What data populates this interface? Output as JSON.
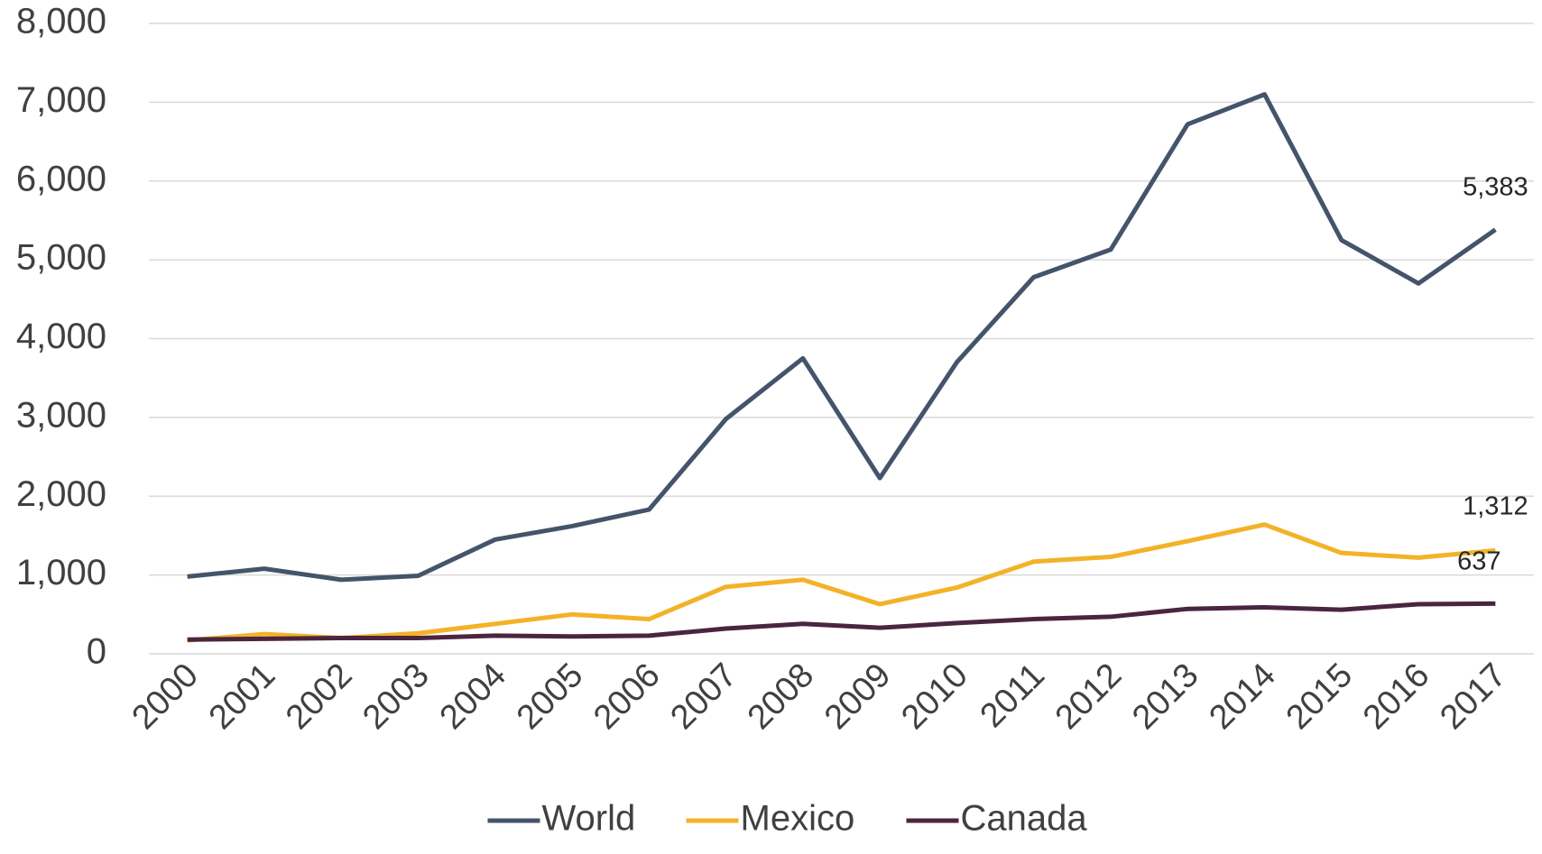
{
  "chart_data": {
    "type": "line",
    "categories": [
      "2000",
      "2001",
      "2002",
      "2003",
      "2004",
      "2005",
      "2006",
      "2007",
      "2008",
      "2009",
      "2010",
      "2011",
      "2012",
      "2013",
      "2014",
      "2015",
      "2016",
      "2017"
    ],
    "series": [
      {
        "name": "World",
        "color": "#44546a",
        "values": [
          980,
          1080,
          940,
          990,
          1450,
          1620,
          1830,
          2980,
          3750,
          2230,
          3700,
          4780,
          5130,
          6720,
          7100,
          5250,
          4700,
          5383
        ],
        "value_labels": [
          null,
          null,
          null,
          null,
          null,
          null,
          null,
          null,
          null,
          null,
          null,
          null,
          null,
          null,
          null,
          null,
          null,
          "5,383"
        ]
      },
      {
        "name": "Mexico",
        "color": "#f3b228",
        "values": [
          170,
          250,
          200,
          260,
          380,
          500,
          440,
          850,
          940,
          630,
          840,
          1170,
          1230,
          1430,
          1640,
          1280,
          1220,
          1312
        ],
        "value_labels": [
          null,
          null,
          null,
          null,
          null,
          null,
          null,
          null,
          null,
          null,
          null,
          null,
          null,
          null,
          null,
          null,
          null,
          "1,312"
        ]
      },
      {
        "name": "Canada",
        "color": "#4b2540",
        "values": [
          180,
          190,
          200,
          200,
          230,
          220,
          230,
          320,
          380,
          330,
          390,
          440,
          470,
          570,
          590,
          560,
          630,
          637
        ]
      }
    ],
    "ylim": [
      0,
      8000
    ],
    "yticks": [
      0,
      {
        "value": 1000,
        "label": "1,000"
      },
      {
        "value": 2000,
        "label": "2,000"
      },
      {
        "value": 3000,
        "label": "3,000"
      },
      {
        "value": 4000,
        "label": "4,000"
      },
      {
        "value": 5000,
        "label": "5,000"
      },
      {
        "value": 6000,
        "label": "6,000"
      },
      {
        "value": 7000,
        "label": "7,000"
      },
      {
        "value": 8000,
        "label": "8,000"
      }
    ],
    "grid": true,
    "legend": "bottom"
  }
}
